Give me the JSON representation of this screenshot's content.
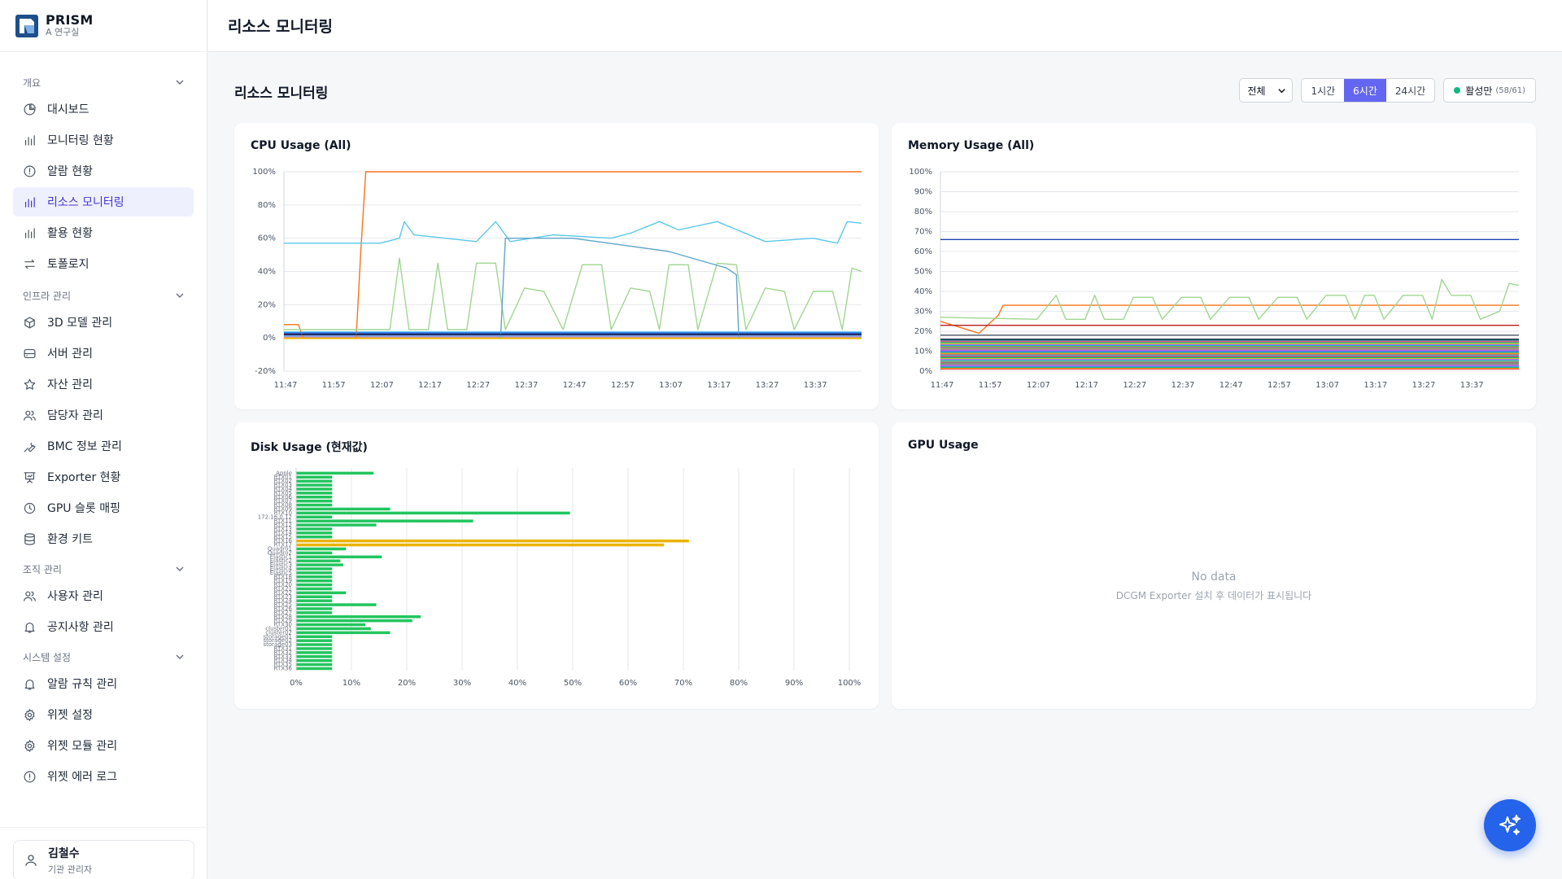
{
  "brand": {
    "name": "PRISM",
    "subtitle": "A 연구실"
  },
  "header": {
    "title": "리소스 모니터링"
  },
  "sidebar": {
    "groups": [
      {
        "label": "개요",
        "items": [
          {
            "label": "대시보드",
            "icon": "pie-chart-icon"
          },
          {
            "label": "모니터링 현황",
            "icon": "bar-chart-icon"
          },
          {
            "label": "알람 현황",
            "icon": "alert-circle-icon"
          },
          {
            "label": "리소스 모니터링",
            "icon": "bar-chart-icon",
            "active": true
          },
          {
            "label": "활용 현황",
            "icon": "bar-chart-icon"
          },
          {
            "label": "토폴로지",
            "icon": "arrows-icon"
          }
        ]
      },
      {
        "label": "인프라 관리",
        "items": [
          {
            "label": "3D 모델 관리",
            "icon": "cube-icon"
          },
          {
            "label": "서버 관리",
            "icon": "server-icon"
          },
          {
            "label": "자산 관리",
            "icon": "star-icon"
          },
          {
            "label": "담당자 관리",
            "icon": "users-icon"
          },
          {
            "label": "BMC 정보 관리",
            "icon": "wrench-icon"
          },
          {
            "label": "Exporter 현황",
            "icon": "presentation-icon"
          },
          {
            "label": "GPU 슬롯 매핑",
            "icon": "cpu-icon"
          },
          {
            "label": "환경 키트",
            "icon": "database-icon"
          }
        ]
      },
      {
        "label": "조직 관리",
        "items": [
          {
            "label": "사용자 관리",
            "icon": "users-icon"
          },
          {
            "label": "공지사항 관리",
            "icon": "bell-icon"
          }
        ]
      },
      {
        "label": "시스템 설정",
        "items": [
          {
            "label": "알람 규칙 관리",
            "icon": "bell-icon"
          },
          {
            "label": "위젯 설정",
            "icon": "gear-icon"
          },
          {
            "label": "위젯 모듈 관리",
            "icon": "gear-icon"
          },
          {
            "label": "위젯 에러 로그",
            "icon": "alert-circle-icon"
          }
        ]
      }
    ]
  },
  "user": {
    "name": "김철수",
    "role": "기관 관리자"
  },
  "main": {
    "title": "리소스 모니터링",
    "filter": {
      "selected": "전체"
    },
    "ranges": [
      {
        "label": "1시간"
      },
      {
        "label": "6시간",
        "selected": true
      },
      {
        "label": "24시간"
      }
    ],
    "active_filter": {
      "label": "활성만",
      "count": "(58/61)"
    }
  },
  "colors": {
    "accent": "#6366f1",
    "green": "#22c55e",
    "orange": "#f97316",
    "cyan": "#5bc8e8",
    "yellow": "#eab308",
    "fab": "#2563eb"
  },
  "chart_data": [
    {
      "type": "line",
      "title": "CPU Usage (All)",
      "ylim": [
        -20,
        100
      ],
      "yticks": [
        "100%",
        "80%",
        "60%",
        "40%",
        "20%",
        "0%",
        "-20%"
      ],
      "xticks": [
        "11:47",
        "11:57",
        "12:07",
        "12:17",
        "12:27",
        "12:37",
        "12:47",
        "12:57",
        "13:07",
        "13:17",
        "13:27",
        "13:37"
      ],
      "series": [
        {
          "color": "#f97316",
          "points": [
            [
              0,
              8
            ],
            [
              3,
              8
            ],
            [
              4,
              0
            ],
            [
              15,
              0
            ],
            [
              16,
              54
            ],
            [
              17,
              100
            ],
            [
              120,
              100
            ]
          ]
        },
        {
          "color": "#5bc8e8",
          "points": [
            [
              0,
              57
            ],
            [
              20,
              57
            ],
            [
              24,
              60
            ],
            [
              25,
              70
            ],
            [
              27,
              62
            ],
            [
              40,
              58
            ],
            [
              44,
              70
            ],
            [
              47,
              58
            ],
            [
              56,
              62
            ],
            [
              68,
              60
            ],
            [
              72,
              63
            ],
            [
              78,
              70
            ],
            [
              82,
              65
            ],
            [
              90,
              70
            ],
            [
              100,
              58
            ],
            [
              110,
              60
            ],
            [
              115,
              57
            ],
            [
              117,
              70
            ],
            [
              120,
              69
            ]
          ]
        },
        {
          "color": "#9fd68f",
          "points": [
            [
              0,
              5
            ],
            [
              22,
              5
            ],
            [
              24,
              48
            ],
            [
              26,
              5
            ],
            [
              30,
              5
            ],
            [
              32,
              45
            ],
            [
              34,
              5
            ],
            [
              38,
              5
            ],
            [
              40,
              45
            ],
            [
              44,
              45
            ],
            [
              46,
              5
            ],
            [
              50,
              30
            ],
            [
              54,
              28
            ],
            [
              58,
              5
            ],
            [
              62,
              44
            ],
            [
              66,
              44
            ],
            [
              68,
              5
            ],
            [
              72,
              30
            ],
            [
              76,
              28
            ],
            [
              78,
              5
            ],
            [
              80,
              44
            ],
            [
              84,
              44
            ],
            [
              86,
              5
            ],
            [
              90,
              45
            ],
            [
              94,
              44
            ],
            [
              96,
              5
            ],
            [
              100,
              30
            ],
            [
              104,
              28
            ],
            [
              106,
              5
            ],
            [
              110,
              28
            ],
            [
              114,
              28
            ],
            [
              116,
              5
            ],
            [
              118,
              42
            ],
            [
              120,
              40
            ]
          ]
        },
        {
          "color": "#60a5c8",
          "points": [
            [
              45,
              0
            ],
            [
              46,
              60
            ],
            [
              60,
              60
            ],
            [
              80,
              52
            ],
            [
              92,
              42
            ],
            [
              94,
              38
            ],
            [
              94.5,
              0
            ]
          ]
        },
        {
          "color": "#1e1b4b",
          "points": [
            [
              0,
              2
            ],
            [
              120,
              2
            ]
          ]
        },
        {
          "color": "#3b82f6",
          "points": [
            [
              0,
              3
            ],
            [
              120,
              3
            ]
          ]
        },
        {
          "color": "#eab308",
          "points": [
            [
              0,
              0
            ],
            [
              120,
              0
            ]
          ]
        }
      ]
    },
    {
      "type": "line",
      "title": "Memory Usage (All)",
      "ylim": [
        0,
        100
      ],
      "yticks": [
        "100%",
        "90%",
        "80%",
        "70%",
        "60%",
        "50%",
        "40%",
        "30%",
        "20%",
        "10%",
        "0%"
      ],
      "xticks": [
        "11:47",
        "11:57",
        "12:07",
        "12:17",
        "12:27",
        "12:37",
        "12:47",
        "12:57",
        "13:07",
        "13:17",
        "13:27",
        "13:37"
      ],
      "series": [
        {
          "color": "#1e40af",
          "points": [
            [
              0,
              66
            ],
            [
              120,
              66
            ]
          ]
        },
        {
          "color": "#f97316",
          "points": [
            [
              0,
              25
            ],
            [
              8,
              19
            ],
            [
              12,
              28
            ],
            [
              13,
              33
            ],
            [
              120,
              33
            ]
          ]
        },
        {
          "color": "#9fd68f",
          "points": [
            [
              0,
              27
            ],
            [
              20,
              26
            ],
            [
              24,
              38
            ],
            [
              26,
              26
            ],
            [
              30,
              26
            ],
            [
              32,
              38
            ],
            [
              34,
              26
            ],
            [
              38,
              26
            ],
            [
              40,
              37
            ],
            [
              44,
              37
            ],
            [
              46,
              26
            ],
            [
              50,
              37
            ],
            [
              54,
              37
            ],
            [
              56,
              26
            ],
            [
              60,
              37
            ],
            [
              64,
              37
            ],
            [
              66,
              26
            ],
            [
              70,
              37
            ],
            [
              74,
              37
            ],
            [
              76,
              26
            ],
            [
              80,
              38
            ],
            [
              84,
              38
            ],
            [
              86,
              26
            ],
            [
              88,
              38
            ],
            [
              90,
              38
            ],
            [
              92,
              26
            ],
            [
              96,
              38
            ],
            [
              100,
              38
            ],
            [
              102,
              26
            ],
            [
              104,
              46
            ],
            [
              106,
              38
            ],
            [
              110,
              38
            ],
            [
              112,
              26
            ],
            [
              116,
              30
            ],
            [
              118,
              44
            ],
            [
              120,
              43
            ]
          ]
        },
        {
          "color": "#b91c1c",
          "points": [
            [
              0,
              23
            ],
            [
              120,
              23
            ]
          ]
        },
        {
          "color": "#111827",
          "points": [
            [
              0,
              16
            ],
            [
              120,
              16
            ]
          ]
        }
      ]
    },
    {
      "type": "bar",
      "orientation": "horizontal",
      "title": "Disk Usage (현재값)",
      "xlim": [
        0,
        100
      ],
      "xticks": [
        "0%",
        "10%",
        "20%",
        "30%",
        "40%",
        "50%",
        "60%",
        "70%",
        "80%",
        "90%",
        "100%"
      ],
      "categories": [
        "Apple",
        "RTX01",
        "RTX02",
        "RTX03",
        "RTX04",
        "RTX05",
        "RTX06",
        "RTX07",
        "RTX08",
        "RTX09",
        "RTX10",
        "172.16.0.12",
        "RTX11",
        "RTX12",
        "RTX13",
        "RTX14",
        "RTX15",
        "RTX16",
        "RTX17",
        "Quadro1",
        "Quadro2",
        "Elastic1",
        "Elastic2",
        "Elastic3",
        "Elastic4",
        "Elastic5",
        "RTX18",
        "RTX19",
        "RTX20",
        "RTX21",
        "RTX22",
        "RTX23",
        "RTX24",
        "RTX25",
        "RTX26",
        "RTX27",
        "RTX28",
        "RTX29",
        "RTX30",
        "cluster01",
        "cluster02",
        "storage01",
        "storage02",
        "storage03",
        "RTX31",
        "RTX32",
        "RTX33",
        "RTX34",
        "RTX35",
        "RTX36"
      ],
      "values": [
        14,
        6.5,
        6.5,
        6.5,
        6.5,
        6.5,
        6.5,
        6.5,
        6.5,
        17,
        49.5,
        6.5,
        32,
        14.5,
        6.5,
        6.5,
        6.5,
        71,
        66.5,
        9,
        6.5,
        15.5,
        8,
        8.5,
        6.5,
        6.5,
        6.5,
        6.5,
        6.5,
        6.5,
        9,
        6.5,
        6.5,
        14.5,
        6.5,
        6.5,
        22.5,
        21,
        12.5,
        13.5,
        17,
        6.5,
        6.5,
        6.5,
        6.5,
        6.5,
        6.5,
        6.5,
        6.5,
        6.5
      ]
    },
    {
      "type": "line",
      "title": "GPU Usage",
      "empty_title": "No data",
      "empty_subtitle": "DCGM Exporter 설치 후 데이터가 표시됩니다"
    }
  ]
}
